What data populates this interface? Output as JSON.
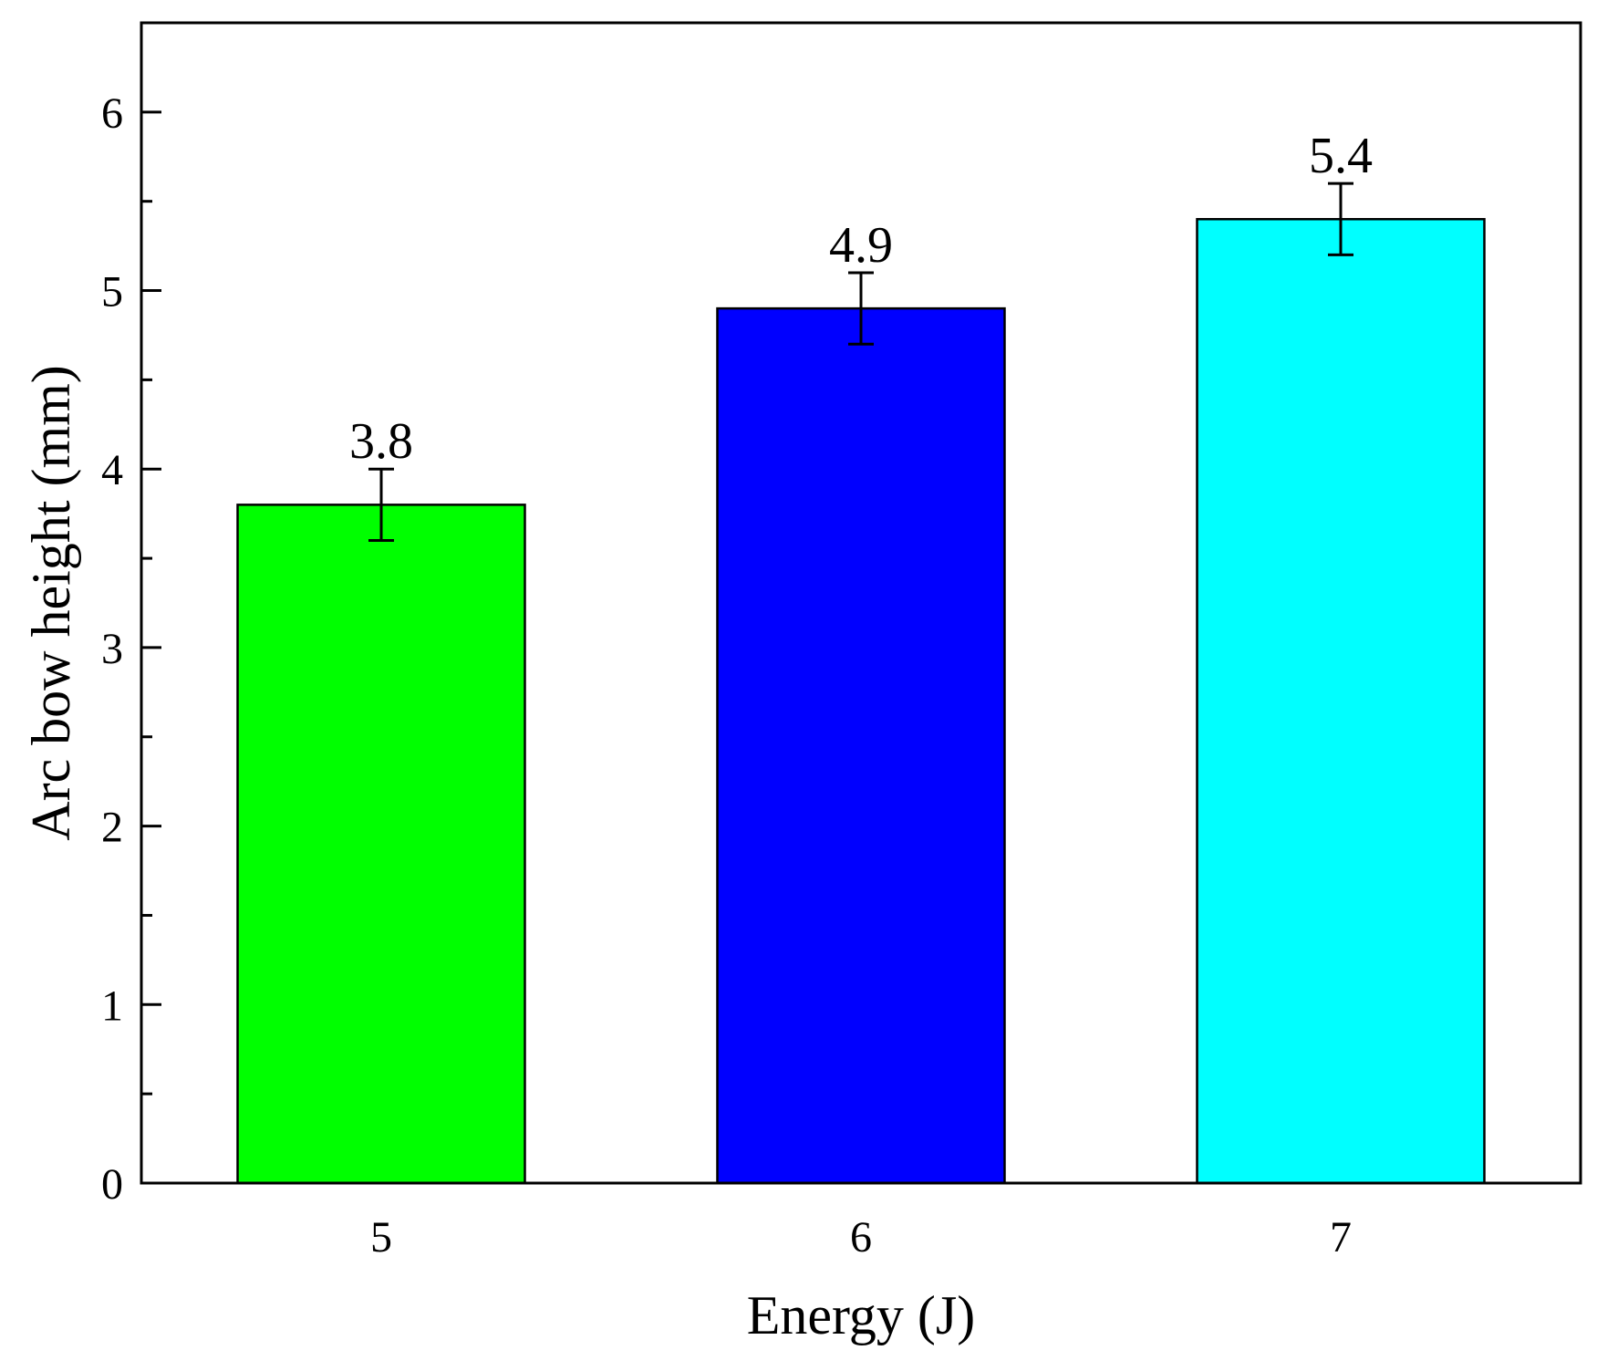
{
  "chart_data": {
    "type": "bar",
    "title": "",
    "xlabel": "Energy (J)",
    "ylabel": "Arc bow height (mm)",
    "categories": [
      "5",
      "6",
      "7"
    ],
    "values": [
      3.8,
      4.9,
      5.4
    ],
    "errors": [
      0.2,
      0.2,
      0.2
    ],
    "data_labels": [
      "3.8",
      "4.9",
      "5.4"
    ],
    "bar_colors": [
      "#00ff00",
      "#0000ff",
      "#00ffff"
    ],
    "ylim": [
      0,
      6.5
    ],
    "yticks": [
      0,
      1,
      2,
      3,
      4,
      5,
      6
    ],
    "ytick_labels": [
      "0",
      "1",
      "2",
      "3",
      "4",
      "5",
      "6"
    ],
    "y_minor_step": 0.5,
    "grid": false,
    "legend": "none"
  }
}
